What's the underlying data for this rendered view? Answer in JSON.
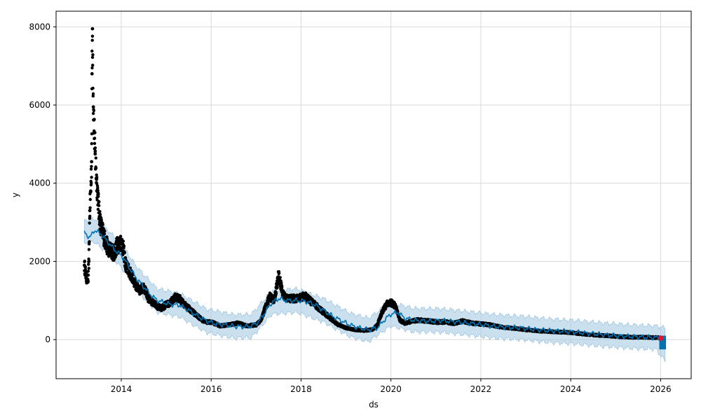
{
  "chart_data": {
    "type": "line",
    "title": "",
    "xlabel": "ds",
    "ylabel": "y",
    "xlim": [
      2012.55,
      2026.68
    ],
    "ylim": [
      -1000,
      8400
    ],
    "x_ticks": [
      2014,
      2016,
      2018,
      2020,
      2022,
      2024,
      2026
    ],
    "x_tick_labels": [
      "2014",
      "2016",
      "2018",
      "2020",
      "2022",
      "2024",
      "2026"
    ],
    "y_ticks": [
      0,
      2000,
      4000,
      6000,
      8000
    ],
    "y_tick_labels": [
      "0",
      "2000",
      "4000",
      "6000",
      "8000"
    ],
    "grid": true,
    "colors": {
      "observed": "#000000",
      "forecast": "#0072B2",
      "interval": "#a6cbe3",
      "highlight": "#e8112d",
      "grid": "#d9d9d9",
      "axes": "#000000"
    },
    "observed": {
      "x": [
        2013.18,
        2013.22,
        2013.26,
        2013.28,
        2013.3,
        2013.32,
        2013.34,
        2013.35,
        2013.36,
        2013.38,
        2013.4,
        2013.42,
        2013.45,
        2013.48,
        2013.5,
        2013.55,
        2013.6,
        2013.65,
        2013.7,
        2013.75,
        2013.8,
        2013.85,
        2013.9,
        2013.95,
        2014.0,
        2014.05,
        2014.1,
        2014.2,
        2014.3,
        2014.4,
        2014.5,
        2014.6,
        2014.7,
        2014.8,
        2014.9,
        2015.0,
        2015.1,
        2015.2,
        2015.3,
        2015.4,
        2015.5,
        2015.6,
        2015.7,
        2015.8,
        2015.9,
        2016.0,
        2016.2,
        2016.4,
        2016.6,
        2016.8,
        2017.0,
        2017.1,
        2017.2,
        2017.3,
        2017.4,
        2017.45,
        2017.5,
        2017.6,
        2017.7,
        2017.8,
        2017.9,
        2018.0,
        2018.1,
        2018.2,
        2018.3,
        2018.4,
        2018.5,
        2018.6,
        2018.7,
        2018.8,
        2018.9,
        2019.0,
        2019.2,
        2019.4,
        2019.6,
        2019.7,
        2019.8,
        2019.9,
        2020.0,
        2020.1,
        2020.2,
        2020.3,
        2020.4,
        2020.6,
        2020.8,
        2021.0,
        2021.2,
        2021.4,
        2021.6,
        2021.8,
        2022.0,
        2022.2,
        2022.4,
        2022.6,
        2022.8,
        2023.0,
        2023.2,
        2023.4,
        2023.6,
        2023.8,
        2024.0,
        2024.2,
        2024.4,
        2024.6,
        2024.8,
        2025.0,
        2025.2,
        2025.4,
        2025.6,
        2025.8,
        2025.95
      ],
      "y": [
        1900,
        1600,
        1500,
        2000,
        3300,
        3800,
        4550,
        6800,
        7950,
        5950,
        5300,
        4750,
        4100,
        3700,
        3300,
        2900,
        2700,
        2500,
        2350,
        2300,
        2250,
        2200,
        2400,
        2450,
        2500,
        2300,
        1900,
        1700,
        1450,
        1250,
        1350,
        1050,
        950,
        850,
        800,
        900,
        950,
        1100,
        1050,
        900,
        800,
        700,
        600,
        500,
        450,
        450,
        350,
        380,
        420,
        350,
        380,
        480,
        800,
        1100,
        1000,
        1300,
        1650,
        1150,
        1050,
        1050,
        1050,
        1100,
        1100,
        1000,
        900,
        800,
        700,
        600,
        500,
        400,
        350,
        300,
        250,
        230,
        260,
        380,
        700,
        900,
        950,
        850,
        500,
        420,
        450,
        500,
        480,
        450,
        450,
        420,
        470,
        420,
        400,
        380,
        330,
        300,
        280,
        250,
        230,
        210,
        200,
        190,
        180,
        150,
        130,
        110,
        100,
        80,
        70,
        60,
        60,
        55,
        50
      ],
      "point_count": 4500
    },
    "forecast": {
      "x": [
        2013.18,
        2013.3,
        2013.4,
        2013.55,
        2013.7,
        2013.85,
        2014.0,
        2014.1,
        2014.2,
        2014.35,
        2014.5,
        2014.65,
        2014.8,
        2014.95,
        2015.1,
        2015.3,
        2015.5,
        2015.7,
        2015.9,
        2016.1,
        2016.3,
        2016.5,
        2016.7,
        2016.9,
        2017.05,
        2017.2,
        2017.35,
        2017.5,
        2017.7,
        2017.9,
        2018.1,
        2018.3,
        2018.5,
        2018.7,
        2018.9,
        2019.1,
        2019.3,
        2019.5,
        2019.7,
        2019.85,
        2020.0,
        2020.15,
        2020.3,
        2020.5,
        2020.7,
        2020.9,
        2021.1,
        2021.3,
        2021.5,
        2021.7,
        2021.9,
        2022.1,
        2022.3,
        2022.5,
        2022.7,
        2022.9,
        2023.1,
        2023.3,
        2023.5,
        2023.7,
        2023.9,
        2024.1,
        2024.3,
        2024.5,
        2024.7,
        2024.9,
        2025.1,
        2025.3,
        2025.5,
        2025.7,
        2025.9,
        2026.0,
        2026.1
      ],
      "y": [
        2750,
        2600,
        2800,
        2700,
        2500,
        2300,
        2150,
        2000,
        1800,
        1550,
        1350,
        1150,
        1000,
        950,
        900,
        880,
        750,
        600,
        480,
        400,
        380,
        340,
        330,
        350,
        450,
        700,
        950,
        1050,
        1000,
        1000,
        980,
        900,
        750,
        600,
        480,
        370,
        300,
        250,
        300,
        500,
        650,
        700,
        550,
        500,
        480,
        470,
        490,
        470,
        450,
        420,
        400,
        370,
        340,
        320,
        310,
        300,
        270,
        250,
        230,
        220,
        210,
        190,
        170,
        150,
        130,
        110,
        90,
        80,
        70,
        60,
        50,
        40,
        -50
      ]
    },
    "interval": {
      "x": [
        2013.18,
        2013.4,
        2013.7,
        2014.0,
        2014.35,
        2014.8,
        2015.3,
        2015.9,
        2016.5,
        2016.9,
        2017.35,
        2017.9,
        2018.5,
        2019.1,
        2019.5,
        2020.0,
        2020.5,
        2021.1,
        2021.7,
        2022.3,
        2022.9,
        2023.5,
        2024.1,
        2024.7,
        2025.3,
        2025.9,
        2026.1
      ],
      "upper": [
        3050,
        3100,
        2800,
        2450,
        1850,
        1300,
        1180,
        780,
        640,
        650,
        1250,
        1300,
        1050,
        670,
        550,
        950,
        800,
        790,
        720,
        640,
        600,
        530,
        490,
        430,
        380,
        350,
        300
      ],
      "lower": [
        2450,
        2500,
        2200,
        1850,
        1250,
        700,
        580,
        180,
        40,
        50,
        650,
        700,
        450,
        70,
        -50,
        350,
        200,
        190,
        120,
        40,
        0,
        -70,
        -110,
        -170,
        -220,
        -250,
        -550
      ]
    },
    "highlight": {
      "x": 2026.0,
      "y": 40
    }
  }
}
